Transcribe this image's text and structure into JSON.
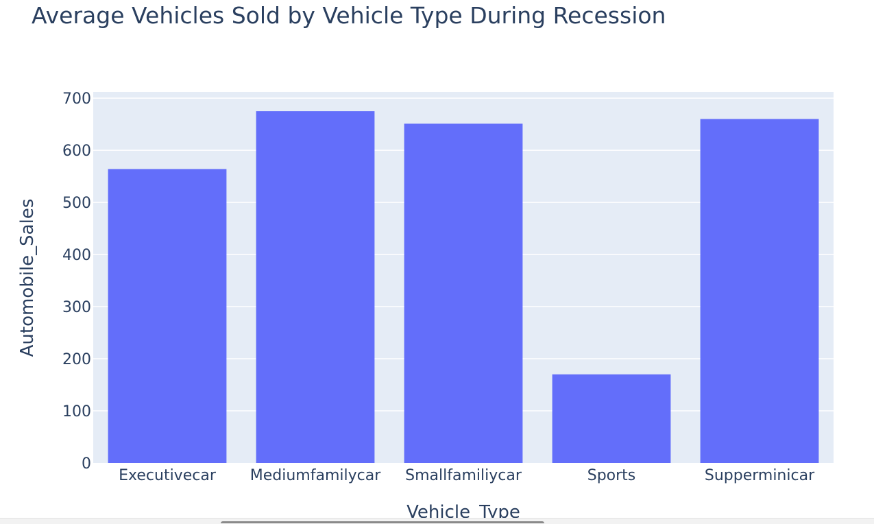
{
  "chart_data": {
    "type": "bar",
    "title": "Average Vehicles Sold by Vehicle Type During Recession",
    "xlabel": "Vehicle_Type",
    "ylabel": "Automobile_Sales",
    "categories": [
      "Executivecar",
      "Mediumfamilycar",
      "Smallfamiliycar",
      "Sports",
      "Supperminicar"
    ],
    "values": [
      564,
      675,
      651,
      170,
      660
    ],
    "ylim": [
      0,
      712
    ],
    "yticks": [
      0,
      100,
      200,
      300,
      400,
      500,
      600,
      700
    ],
    "grid": true,
    "colors": {
      "bar": "#636efa",
      "plot_bg": "#e5ecf6",
      "grid": "#ffffff",
      "text": "#2a3f5f"
    }
  }
}
